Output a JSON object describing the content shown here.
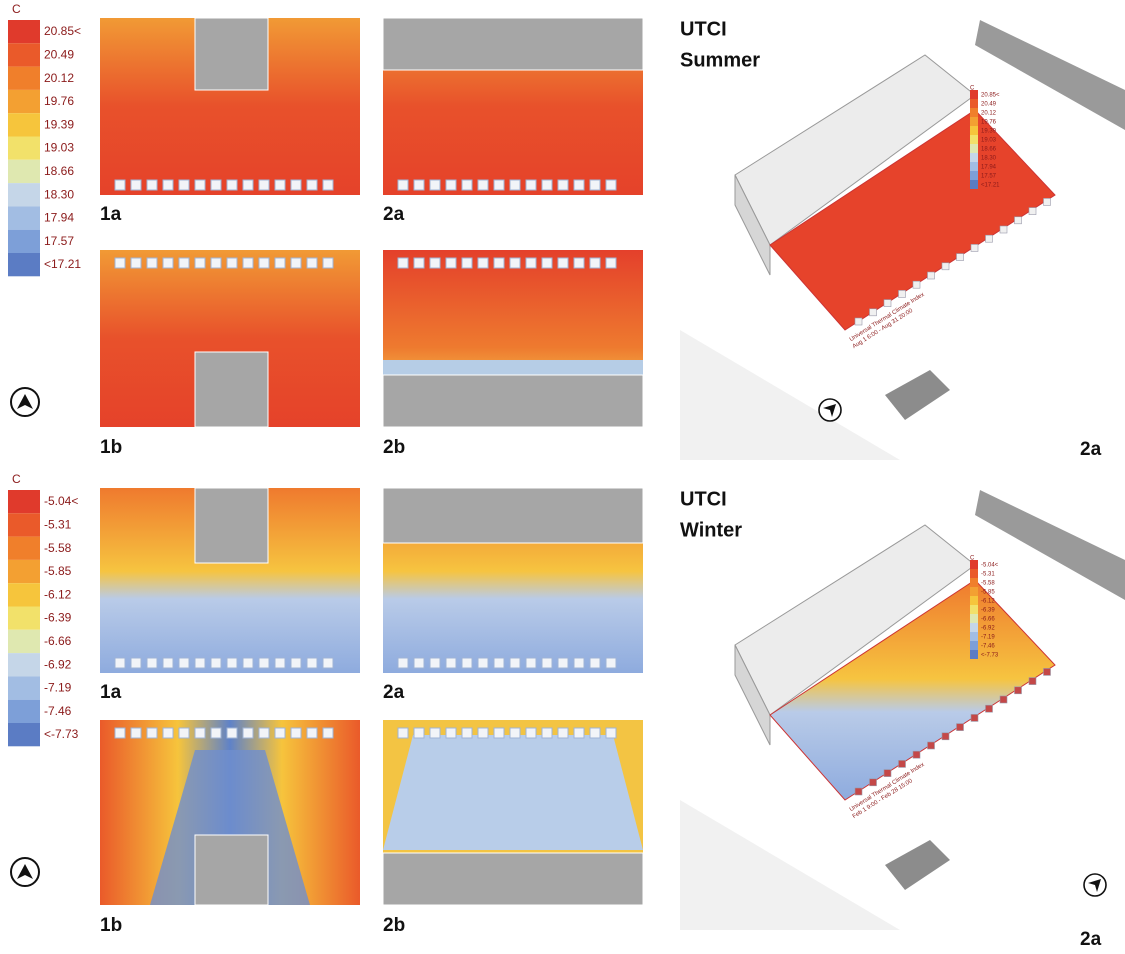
{
  "summer": {
    "legend": {
      "unit": "C",
      "labels": [
        "20.85<",
        "20.49",
        "20.12",
        "19.76",
        "19.39",
        "19.03",
        "18.66",
        "18.30",
        "17.94",
        "17.57",
        "<17.21"
      ]
    },
    "panels": [
      "1a",
      "2a",
      "1b",
      "2b"
    ],
    "view": {
      "title": [
        "UTCI",
        "Summer"
      ],
      "label": "2a",
      "legend": {
        "unit": "C",
        "labels": [
          "20.85<",
          "20.49",
          "20.12",
          "19.76",
          "19.39",
          "19.03",
          "18.66",
          "18.30",
          "17.94",
          "17.57",
          "<17.21"
        ]
      },
      "caption": [
        "Universal Thermal Climate Index",
        "Aug 1 6:00 - Aug 31 20:00"
      ]
    }
  },
  "winter": {
    "legend": {
      "unit": "C",
      "labels": [
        "-5.04<",
        "-5.31",
        "-5.58",
        "-5.85",
        "-6.12",
        "-6.39",
        "-6.66",
        "-6.92",
        "-7.19",
        "-7.46",
        "<-7.73"
      ]
    },
    "panels": [
      "1a",
      "2a",
      "1b",
      "2b"
    ],
    "view": {
      "title": [
        "UTCI",
        "Winter"
      ],
      "label": "2a",
      "legend": {
        "unit": "C",
        "labels": [
          "-5.04<",
          "-5.31",
          "-5.58",
          "-5.85",
          "-6.12",
          "-6.39",
          "-6.66",
          "-6.92",
          "-7.19",
          "-7.46",
          "<-7.73"
        ]
      },
      "caption": [
        "Universal Thermal Climate Index",
        "Feb 1 9:00 - Feb 28 15:00"
      ]
    }
  }
}
